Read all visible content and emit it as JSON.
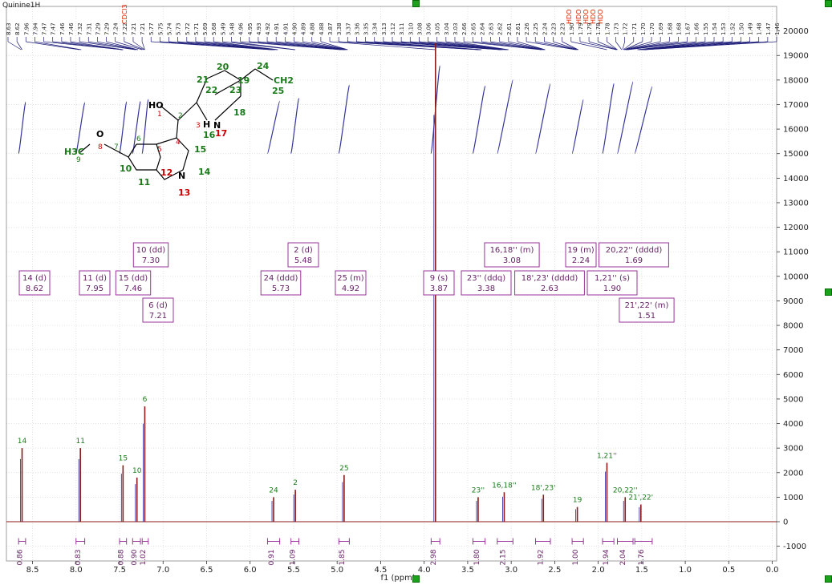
{
  "window": {
    "title": "Quinine1H"
  },
  "chart_data": {
    "type": "line",
    "xlabel": "f1 (ppm)",
    "x_ticks": [
      "8.5",
      "8.0",
      "7.5",
      "7.0",
      "6.5",
      "6.0",
      "5.5",
      "5.0",
      "4.5",
      "4.0",
      "3.5",
      "3.0",
      "2.5",
      "2.0",
      "1.5",
      "1.0",
      "0.5",
      "0.0"
    ],
    "xlim": [
      8.8,
      -0.05
    ],
    "ylim": [
      -1600,
      21000
    ],
    "y_ticks": [
      "20000",
      "19000",
      "18000",
      "17000",
      "16000",
      "15000",
      "14000",
      "13000",
      "12000",
      "11000",
      "10000",
      "9000",
      "8000",
      "7000",
      "6000",
      "5000",
      "4000",
      "3000",
      "2000",
      "1000",
      "0",
      "-1000"
    ],
    "grid": true,
    "peaks": [
      {
        "ppm": 8.62,
        "height": 3000,
        "label": "14"
      },
      {
        "ppm": 7.95,
        "height": 3000,
        "label": "11"
      },
      {
        "ppm": 7.46,
        "height": 2300,
        "label": "15"
      },
      {
        "ppm": 7.3,
        "height": 1800,
        "label": "10"
      },
      {
        "ppm": 7.21,
        "height": 4700,
        "label": "6"
      },
      {
        "ppm": 5.73,
        "height": 1000,
        "label": "24"
      },
      {
        "ppm": 5.48,
        "height": 1300,
        "label": "2"
      },
      {
        "ppm": 4.92,
        "height": 1900,
        "label": "25"
      },
      {
        "ppm": 3.87,
        "height": 19500,
        "label": ""
      },
      {
        "ppm": 3.38,
        "height": 1000,
        "label": "23''"
      },
      {
        "ppm": 3.08,
        "height": 1200,
        "label": "16,18''"
      },
      {
        "ppm": 2.63,
        "height": 1100,
        "label": "18',23'"
      },
      {
        "ppm": 2.24,
        "height": 600,
        "label": "19"
      },
      {
        "ppm": 1.9,
        "height": 2400,
        "label": "1,21''"
      },
      {
        "ppm": 1.69,
        "height": 1000,
        "label": "20,22''"
      },
      {
        "ppm": 1.51,
        "height": 700,
        "label": "21',22'"
      }
    ],
    "multiplets": [
      {
        "label": "14 (d)",
        "shift": "8.62"
      },
      {
        "label": "11 (d)",
        "shift": "7.95"
      },
      {
        "label": "15 (dd)",
        "shift": "7.46"
      },
      {
        "label": "10 (dd)",
        "shift": "7.30"
      },
      {
        "label": "6 (d)",
        "shift": "7.21"
      },
      {
        "label": "24 (ddd)",
        "shift": "5.73"
      },
      {
        "label": "2 (d)",
        "shift": "5.48"
      },
      {
        "label": "25 (m)",
        "shift": "4.92"
      },
      {
        "label": "9 (s)",
        "shift": "3.87"
      },
      {
        "label": "23'' (ddq)",
        "shift": "3.38"
      },
      {
        "label": "16,18'' (m)",
        "shift": "3.08"
      },
      {
        "label": "18',23' (dddd)",
        "shift": "2.63"
      },
      {
        "label": "19 (m)",
        "shift": "2.24"
      },
      {
        "label": "1,21'' (s)",
        "shift": "1.90"
      },
      {
        "label": "20,22'' (dddd)",
        "shift": "1.69"
      },
      {
        "label": "21',22' (m)",
        "shift": "1.51"
      }
    ],
    "integrals": [
      {
        "from": 8.66,
        "to": 8.58,
        "value": "0.86"
      },
      {
        "from": 8.0,
        "to": 7.9,
        "value": "0.83"
      },
      {
        "from": 7.5,
        "to": 7.42,
        "value": "0.88"
      },
      {
        "from": 7.35,
        "to": 7.26,
        "value": "0.90"
      },
      {
        "from": 7.24,
        "to": 7.17,
        "value": "1.02"
      },
      {
        "from": 5.8,
        "to": 5.66,
        "value": "0.91"
      },
      {
        "from": 5.53,
        "to": 5.44,
        "value": "1.09"
      },
      {
        "from": 4.98,
        "to": 4.86,
        "value": "1.85"
      },
      {
        "from": 3.92,
        "to": 3.82,
        "value": "2.98"
      },
      {
        "from": 3.44,
        "to": 3.3,
        "value": "1.80"
      },
      {
        "from": 3.16,
        "to": 2.98,
        "value": "2.15"
      },
      {
        "from": 2.72,
        "to": 2.55,
        "value": "1.92"
      },
      {
        "from": 2.3,
        "to": 2.17,
        "value": "1.00"
      },
      {
        "from": 1.95,
        "to": 1.82,
        "value": "1.94"
      },
      {
        "from": 1.78,
        "to": 1.6,
        "value": "2.04"
      },
      {
        "from": 1.58,
        "to": 1.38,
        "value": "1.76"
      }
    ],
    "peak_picking": [
      "8.63",
      "8.62",
      "7.96",
      "7.94",
      "7.47",
      "7.47",
      "7.46",
      "7.46",
      "7.32",
      "7.31",
      "7.29",
      "7.29",
      "7.24",
      "7.22",
      "7.21",
      "7.21",
      "5.77",
      "5.75",
      "5.74",
      "5.73",
      "5.72",
      "5.71",
      "5.69",
      "5.68",
      "5.49",
      "5.48",
      "4.96",
      "4.95",
      "4.93",
      "4.92",
      "4.91",
      "4.91",
      "4.90",
      "4.89",
      "4.88",
      "4.88",
      "3.87",
      "3.38",
      "3.37",
      "3.36",
      "3.35",
      "3.34",
      "3.13",
      "3.12",
      "3.11",
      "3.10",
      "3.08",
      "3.06",
      "3.05",
      "3.04",
      "3.03",
      "2.66",
      "2.65",
      "2.64",
      "2.63",
      "2.62",
      "2.61",
      "2.61",
      "2.26",
      "2.25",
      "2.24",
      "2.23",
      "2.23",
      "1.90",
      "1.79",
      "1.79",
      "1.78",
      "1.78",
      "1.73",
      "1.72",
      "1.71",
      "1.70",
      "1.70",
      "1.69",
      "1.68",
      "1.68",
      "1.67",
      "1.66",
      "1.55",
      "1.54",
      "1.53",
      "1.52",
      "1.50",
      "1.49",
      "1.48",
      "1.47",
      "1.46"
    ],
    "solvent_labels": [
      "CDCl3",
      "HDO",
      "HDO",
      "HDO",
      "HDO",
      "HDO"
    ],
    "solvent_color": "#dd2200",
    "accent_purple": "#993399",
    "trace_color": "#8b1a1a",
    "peak_label_color": "#1a7a1a",
    "integral_curve_color": "#333399"
  },
  "molecule_labels": [
    {
      "text": "HO",
      "color": "#000000"
    },
    {
      "text": "1",
      "color": "#cc0000"
    },
    {
      "text": "2",
      "color": "#1a7a1a"
    },
    {
      "text": "3",
      "color": "#cc0000"
    },
    {
      "text": "21",
      "color": "#1a7a1a"
    },
    {
      "text": "20",
      "color": "#1a7a1a"
    },
    {
      "text": "22",
      "color": "#1a7a1a"
    },
    {
      "text": "23",
      "color": "#1a7a1a"
    },
    {
      "text": "19",
      "color": "#1a7a1a"
    },
    {
      "text": "24",
      "color": "#1a7a1a"
    },
    {
      "text": "CH2",
      "color": "#1a7a1a"
    },
    {
      "text": "25",
      "color": "#1a7a1a"
    },
    {
      "text": "18",
      "color": "#1a7a1a"
    },
    {
      "text": "H",
      "color": "#000000"
    },
    {
      "text": "N",
      "color": "#000000"
    },
    {
      "text": "16",
      "color": "#1a7a1a"
    },
    {
      "text": "17",
      "color": "#cc0000"
    },
    {
      "text": "O",
      "color": "#000000"
    },
    {
      "text": "8",
      "color": "#cc0000"
    },
    {
      "text": "H3C",
      "color": "#1a7a1a"
    },
    {
      "text": "9",
      "color": "#1a7a1a"
    },
    {
      "text": "7",
      "color": "#1a7a1a"
    },
    {
      "text": "6",
      "color": "#1a7a1a"
    },
    {
      "text": "5",
      "color": "#cc0000"
    },
    {
      "text": "4",
      "color": "#cc0000"
    },
    {
      "text": "15",
      "color": "#1a7a1a"
    },
    {
      "text": "10",
      "color": "#1a7a1a"
    },
    {
      "text": "11",
      "color": "#1a7a1a"
    },
    {
      "text": "12",
      "color": "#cc0000"
    },
    {
      "text": "14",
      "color": "#1a7a1a"
    },
    {
      "text": "N",
      "color": "#000000"
    },
    {
      "text": "13",
      "color": "#cc0000"
    }
  ]
}
